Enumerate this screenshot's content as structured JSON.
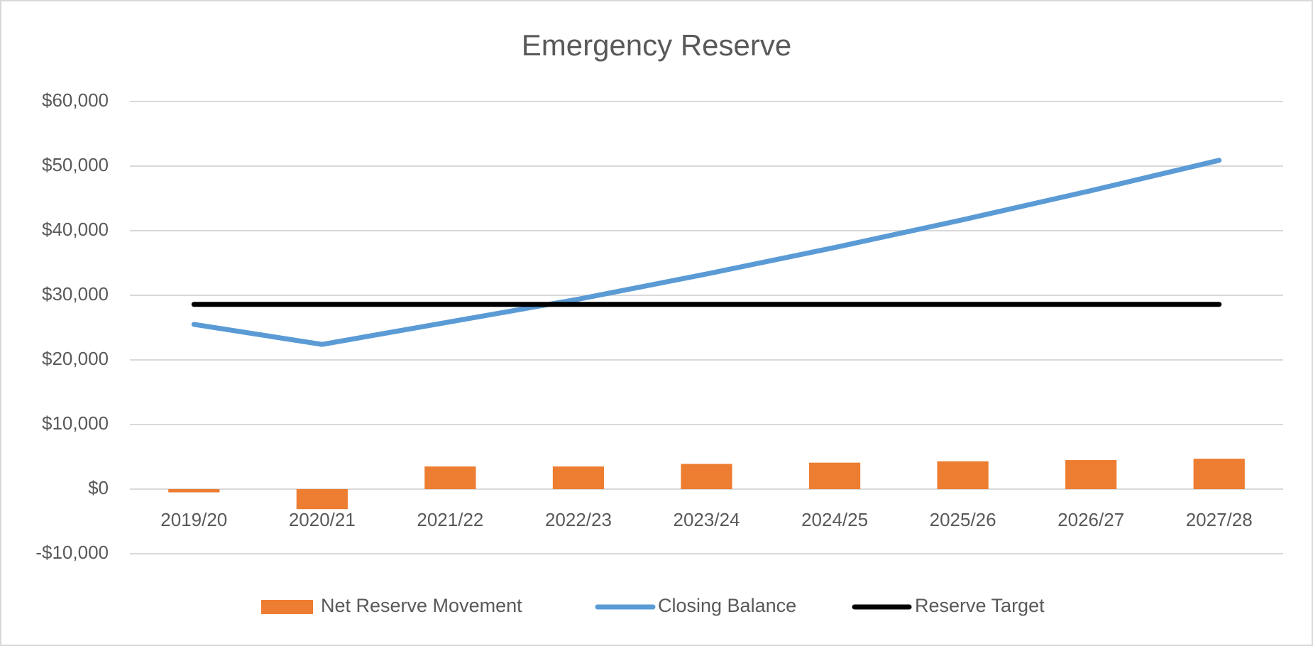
{
  "chart_data": {
    "type": "combo",
    "title": "Emergency Reserve",
    "categories": [
      "2019/20",
      "2020/21",
      "2021/22",
      "2022/23",
      "2023/24",
      "2024/25",
      "2025/26",
      "2026/27",
      "2027/28"
    ],
    "series": [
      {
        "name": "Net Reserve Movement",
        "type": "bar",
        "color": "#ed7d31",
        "values": [
          -500,
          -3100,
          3500,
          3500,
          3900,
          4100,
          4300,
          4500,
          4700
        ]
      },
      {
        "name": "Closing Balance",
        "type": "line",
        "color": "#5b9bd5",
        "values": [
          25500,
          22400,
          25900,
          29400,
          33300,
          37400,
          41700,
          46200,
          50900
        ]
      },
      {
        "name": "Reserve Target",
        "type": "line",
        "color": "#000000",
        "values": [
          28600,
          28600,
          28600,
          28600,
          28600,
          28600,
          28600,
          28600,
          28600
        ]
      }
    ],
    "ylim": [
      -10000,
      60000
    ],
    "yticks": [
      {
        "value": -10000,
        "label": "-$10,000"
      },
      {
        "value": 0,
        "label": "$0"
      },
      {
        "value": 10000,
        "label": "$10,000"
      },
      {
        "value": 20000,
        "label": "$20,000"
      },
      {
        "value": 30000,
        "label": "$30,000"
      },
      {
        "value": 40000,
        "label": "$40,000"
      },
      {
        "value": 50000,
        "label": "$50,000"
      },
      {
        "value": 60000,
        "label": "$60,000"
      }
    ],
    "grid": true,
    "legend": "bottom"
  }
}
